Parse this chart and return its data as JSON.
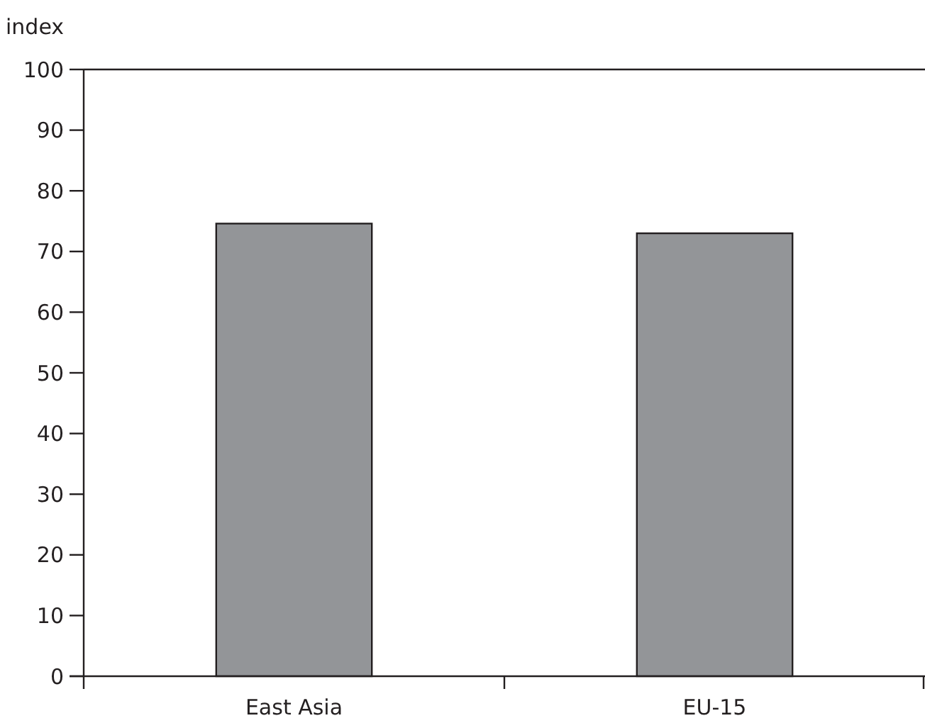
{
  "chart_data": {
    "type": "bar",
    "ylabel": "index",
    "categories": [
      "East Asia",
      "EU-15"
    ],
    "values": [
      74.6,
      73.0
    ],
    "color": "#939598",
    "ylim": [
      0,
      100
    ],
    "yticks": [
      0,
      10,
      20,
      30,
      40,
      50,
      60,
      70,
      80,
      90,
      100
    ],
    "grid": false
  }
}
